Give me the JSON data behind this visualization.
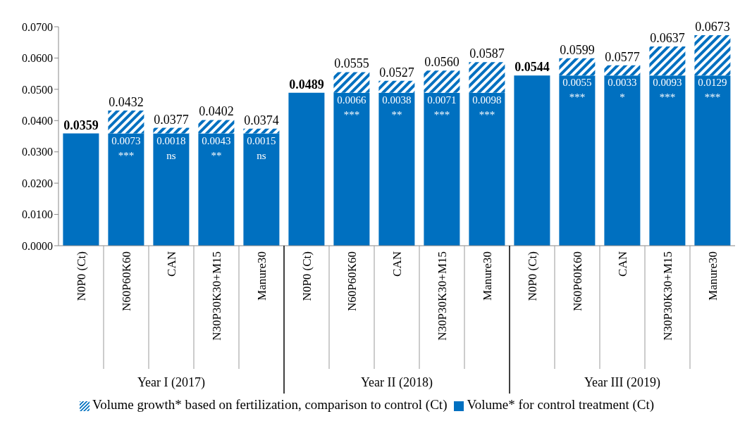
{
  "chart_data": {
    "type": "bar",
    "stacked": true,
    "categories": [
      "N0P0 (Ct)",
      "N60P60K60",
      "CAN",
      "N30P30K30+M15",
      "Manure30",
      "N0P0 (Ct)",
      "N60P60K60",
      "CAN",
      "N30P30K30+M15",
      "Manure30",
      "N0P0 (Ct)",
      "N60P60K60",
      "CAN",
      "N30P30K30+M15",
      "Manure30"
    ],
    "series": [
      {
        "name": "Volume* for control treatment (Ct)",
        "color": "#0070c0",
        "values": [
          0.0359,
          0.0359,
          0.0359,
          0.0359,
          0.0359,
          0.0489,
          0.0489,
          0.0489,
          0.0489,
          0.0489,
          0.0544,
          0.0544,
          0.0544,
          0.0544,
          0.0544
        ]
      },
      {
        "name": "Volume growth* based on fertilization, comparison to control (Ct)",
        "color": "#0070c0",
        "values": [
          null,
          0.0073,
          0.0018,
          0.0043,
          0.0015,
          null,
          0.0066,
          0.0038,
          0.0071,
          0.0098,
          null,
          0.0055,
          0.0033,
          0.0093,
          0.0129
        ],
        "value_labels": [
          null,
          "0.0073",
          "0.0018",
          "0.0043",
          "0.0015",
          null,
          "0.0066",
          "0.0038",
          "0.0071",
          "0.0098",
          null,
          "0.0055",
          "0.0033",
          "0.0093",
          "0.0129"
        ]
      }
    ],
    "totals": [
      "0.0359",
      "0.0432",
      "0.0377",
      "0.0402",
      "0.0374",
      "0.0489",
      "0.0555",
      "0.0527",
      "0.0560",
      "0.0587",
      "0.0544",
      "0.0599",
      "0.0577",
      "0.0637",
      "0.0673"
    ],
    "ylim": [
      0,
      0.07
    ],
    "yticks": [
      {
        "value": 0,
        "label": "0.0000"
      },
      {
        "value": 0.01,
        "label": "0.0100"
      },
      {
        "value": 0.02,
        "label": "0.0200"
      },
      {
        "value": 0.03,
        "label": "0.0300"
      },
      {
        "value": 0.04,
        "label": "0.0400"
      },
      {
        "value": 0.05,
        "label": "0.0500"
      },
      {
        "value": 0.06,
        "label": "0.0600"
      },
      {
        "value": 0.07,
        "label": "0.0700"
      }
    ],
    "grid": false,
    "legend": "bottom",
    "annotations": [
      "***",
      "ns",
      "**",
      "ns",
      "***",
      "**",
      "***",
      "***",
      "***",
      "*",
      "***",
      "***",
      "Year I (2017)",
      "Year II (2018)",
      "Year III (2019)"
    ]
  }
}
